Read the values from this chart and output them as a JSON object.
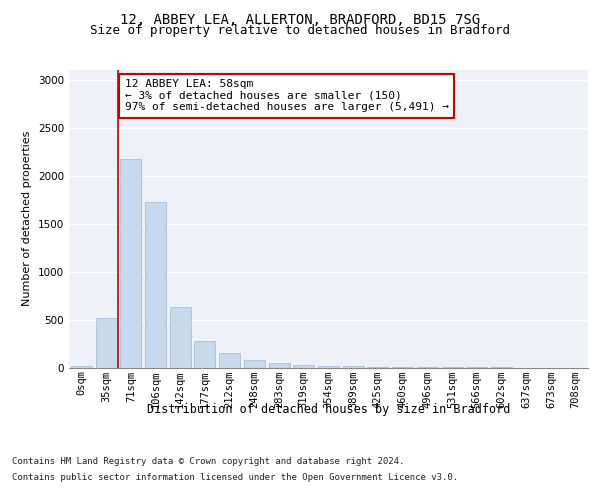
{
  "title_line1": "12, ABBEY LEA, ALLERTON, BRADFORD, BD15 7SG",
  "title_line2": "Size of property relative to detached houses in Bradford",
  "xlabel": "Distribution of detached houses by size in Bradford",
  "ylabel": "Number of detached properties",
  "categories": [
    "0sqm",
    "35sqm",
    "71sqm",
    "106sqm",
    "142sqm",
    "177sqm",
    "212sqm",
    "248sqm",
    "283sqm",
    "319sqm",
    "354sqm",
    "389sqm",
    "425sqm",
    "460sqm",
    "496sqm",
    "531sqm",
    "566sqm",
    "602sqm",
    "637sqm",
    "673sqm",
    "708sqm"
  ],
  "values": [
    20,
    520,
    2175,
    1720,
    635,
    280,
    150,
    80,
    45,
    30,
    20,
    15,
    10,
    5,
    3,
    2,
    1,
    1,
    0,
    0,
    0
  ],
  "bar_color": "#c9d9ed",
  "bar_edge_color": "#a0b8d8",
  "vline_x": 1.5,
  "vline_color": "#cc0000",
  "annotation_text": "12 ABBEY LEA: 58sqm\n← 3% of detached houses are smaller (150)\n97% of semi-detached houses are larger (5,491) →",
  "annotation_box_color": "#ffffff",
  "annotation_box_edge": "#cc0000",
  "ylim": [
    0,
    3100
  ],
  "yticks": [
    0,
    500,
    1000,
    1500,
    2000,
    2500,
    3000
  ],
  "background_color": "#eef2f8",
  "footer_line1": "Contains HM Land Registry data © Crown copyright and database right 2024.",
  "footer_line2": "Contains public sector information licensed under the Open Government Licence v3.0.",
  "title_fontsize": 10,
  "subtitle_fontsize": 9,
  "axis_label_fontsize": 8.5,
  "tick_fontsize": 7.5,
  "annotation_fontsize": 8,
  "footer_fontsize": 6.5,
  "ylabel_fontsize": 8
}
